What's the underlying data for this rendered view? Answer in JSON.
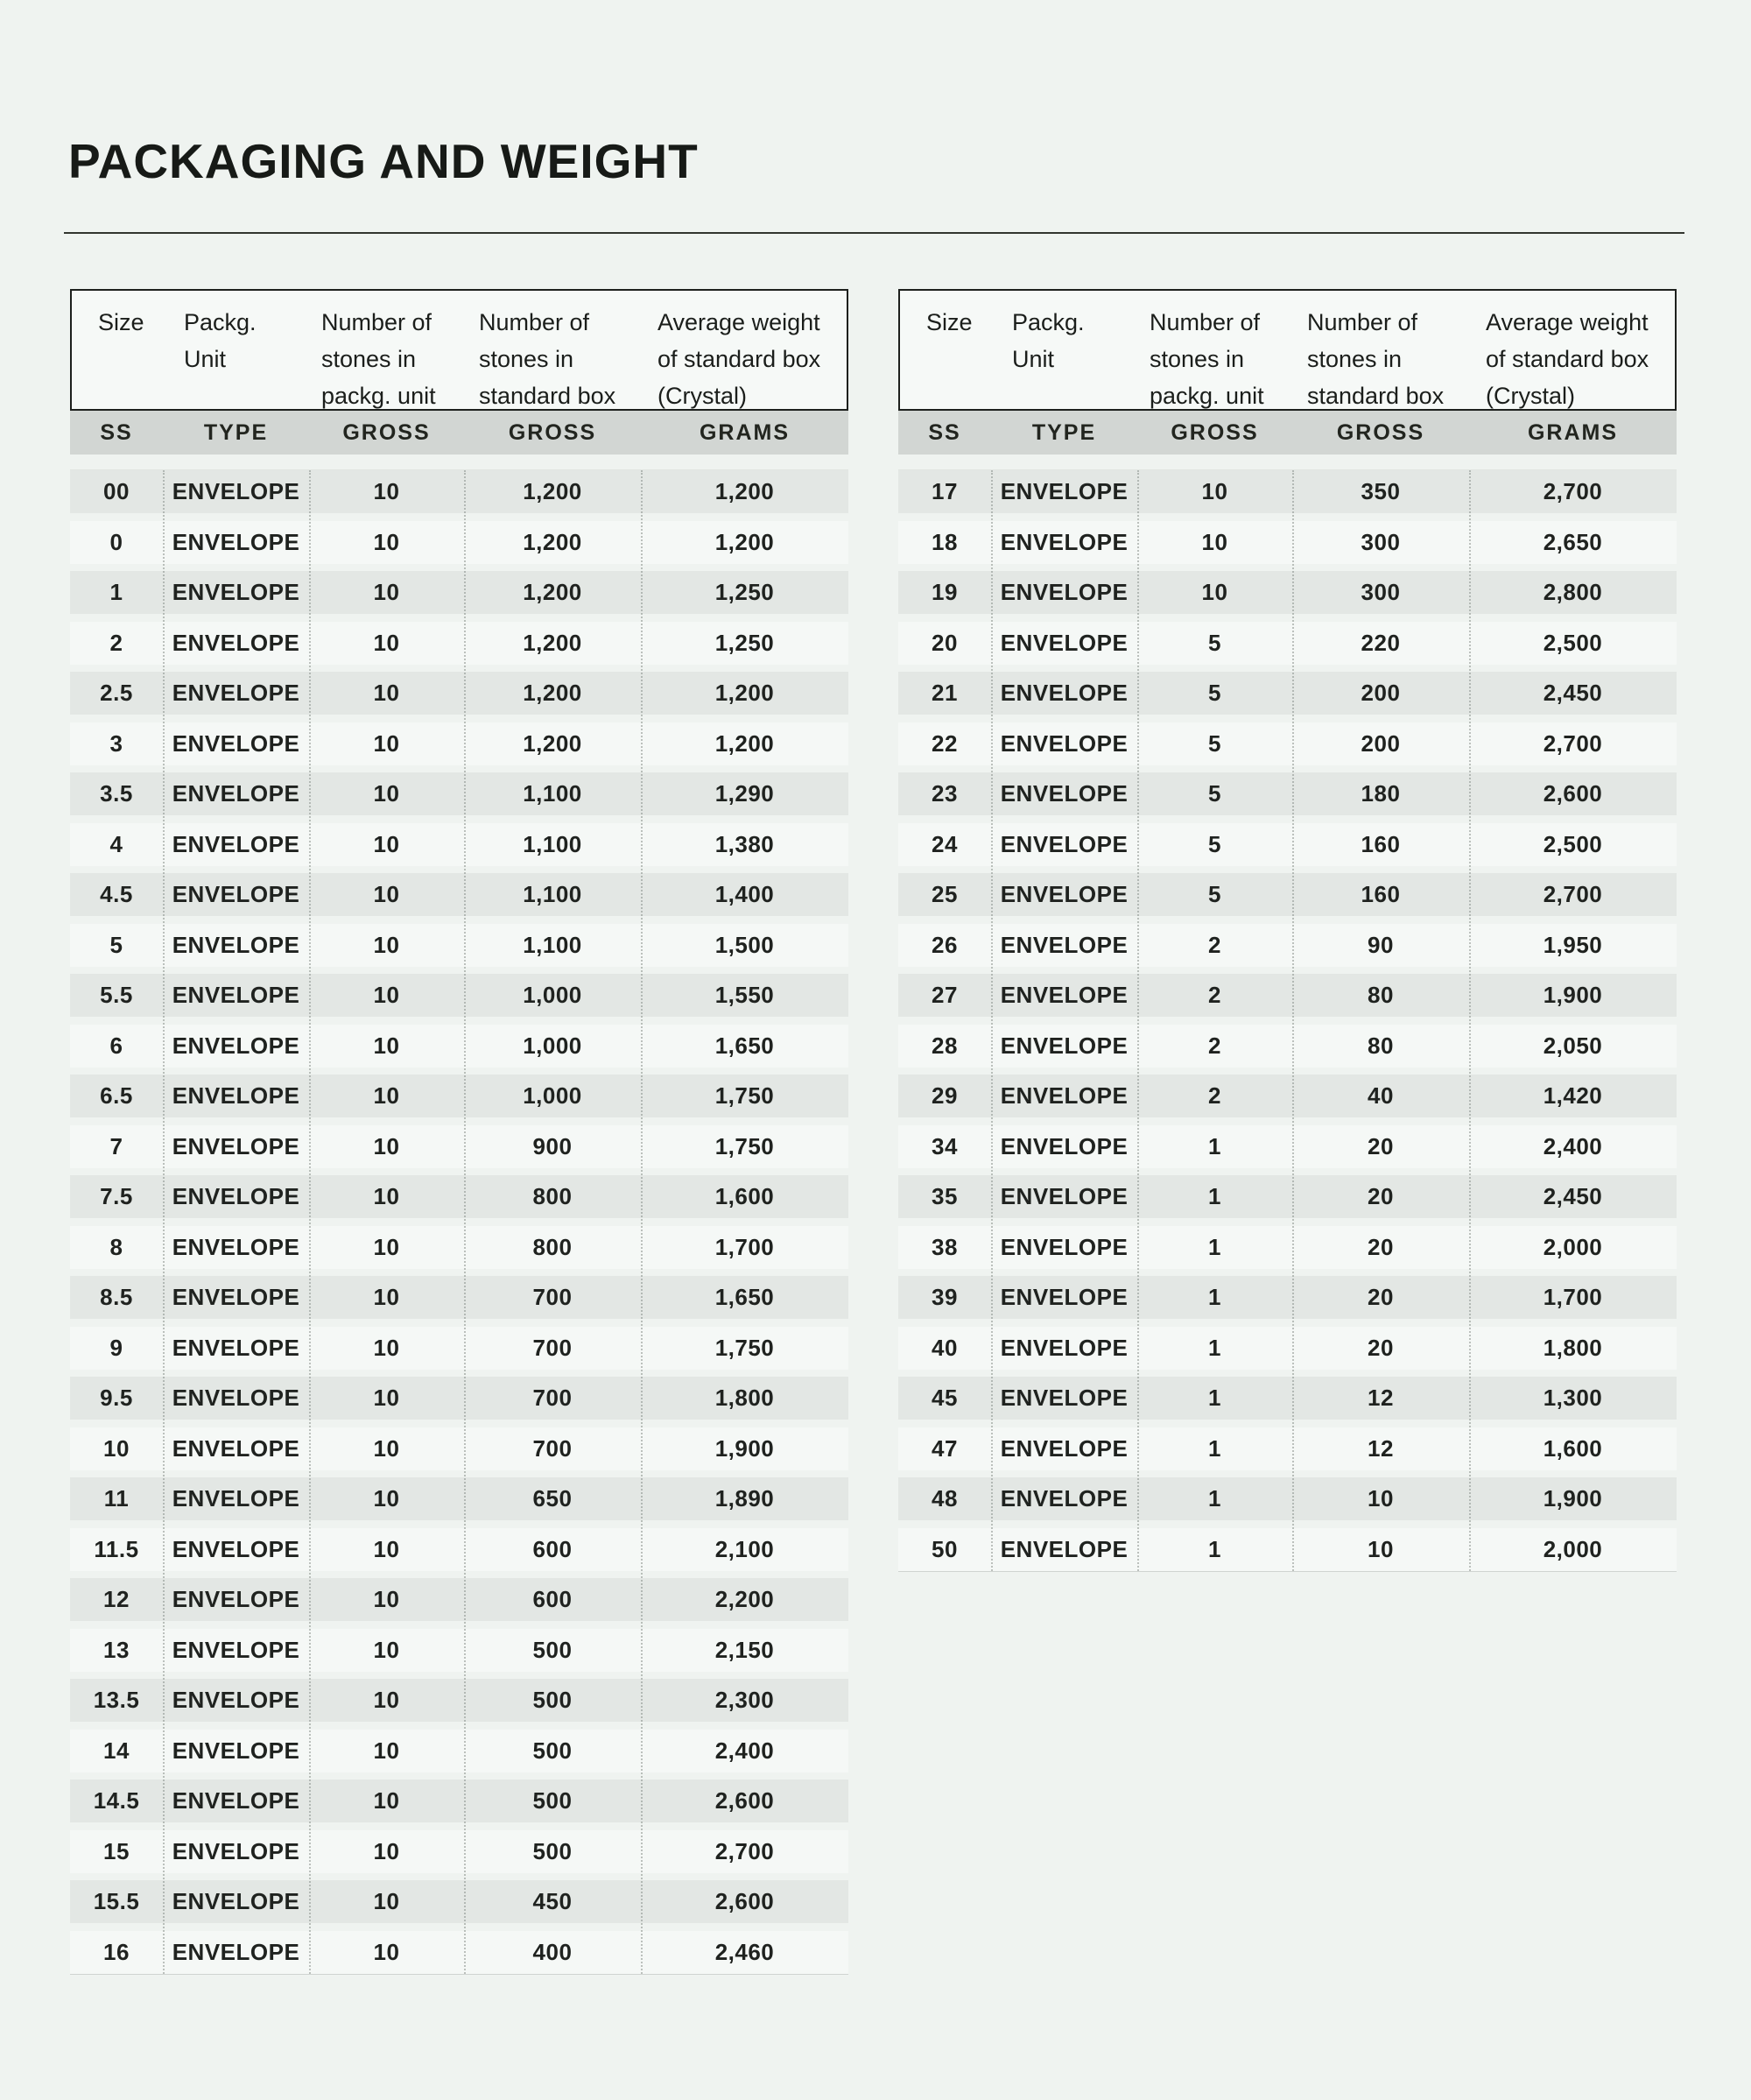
{
  "title": "PACKAGING AND WEIGHT",
  "columns": [
    {
      "lines": [
        "Size"
      ],
      "sub": "SS"
    },
    {
      "lines": [
        "Packg.",
        "Unit"
      ],
      "sub": "TYPE"
    },
    {
      "lines": [
        "Number of",
        "stones in",
        "packg. unit"
      ],
      "sub": "GROSS"
    },
    {
      "lines": [
        "Number of",
        "stones in",
        "standard box"
      ],
      "sub": "GROSS"
    },
    {
      "lines": [
        "Average weight",
        "of standard box",
        "(Crystal)"
      ],
      "sub": "GRAMS"
    }
  ],
  "tables": [
    {
      "rows": [
        [
          "00",
          "ENVELOPE",
          "10",
          "1,200",
          "1,200"
        ],
        [
          "0",
          "ENVELOPE",
          "10",
          "1,200",
          "1,200"
        ],
        [
          "1",
          "ENVELOPE",
          "10",
          "1,200",
          "1,250"
        ],
        [
          "2",
          "ENVELOPE",
          "10",
          "1,200",
          "1,250"
        ],
        [
          "2.5",
          "ENVELOPE",
          "10",
          "1,200",
          "1,200"
        ],
        [
          "3",
          "ENVELOPE",
          "10",
          "1,200",
          "1,200"
        ],
        [
          "3.5",
          "ENVELOPE",
          "10",
          "1,100",
          "1,290"
        ],
        [
          "4",
          "ENVELOPE",
          "10",
          "1,100",
          "1,380"
        ],
        [
          "4.5",
          "ENVELOPE",
          "10",
          "1,100",
          "1,400"
        ],
        [
          "5",
          "ENVELOPE",
          "10",
          "1,100",
          "1,500"
        ],
        [
          "5.5",
          "ENVELOPE",
          "10",
          "1,000",
          "1,550"
        ],
        [
          "6",
          "ENVELOPE",
          "10",
          "1,000",
          "1,650"
        ],
        [
          "6.5",
          "ENVELOPE",
          "10",
          "1,000",
          "1,750"
        ],
        [
          "7",
          "ENVELOPE",
          "10",
          "900",
          "1,750"
        ],
        [
          "7.5",
          "ENVELOPE",
          "10",
          "800",
          "1,600"
        ],
        [
          "8",
          "ENVELOPE",
          "10",
          "800",
          "1,700"
        ],
        [
          "8.5",
          "ENVELOPE",
          "10",
          "700",
          "1,650"
        ],
        [
          "9",
          "ENVELOPE",
          "10",
          "700",
          "1,750"
        ],
        [
          "9.5",
          "ENVELOPE",
          "10",
          "700",
          "1,800"
        ],
        [
          "10",
          "ENVELOPE",
          "10",
          "700",
          "1,900"
        ],
        [
          "11",
          "ENVELOPE",
          "10",
          "650",
          "1,890"
        ],
        [
          "11.5",
          "ENVELOPE",
          "10",
          "600",
          "2,100"
        ],
        [
          "12",
          "ENVELOPE",
          "10",
          "600",
          "2,200"
        ],
        [
          "13",
          "ENVELOPE",
          "10",
          "500",
          "2,150"
        ],
        [
          "13.5",
          "ENVELOPE",
          "10",
          "500",
          "2,300"
        ],
        [
          "14",
          "ENVELOPE",
          "10",
          "500",
          "2,400"
        ],
        [
          "14.5",
          "ENVELOPE",
          "10",
          "500",
          "2,600"
        ],
        [
          "15",
          "ENVELOPE",
          "10",
          "500",
          "2,700"
        ],
        [
          "15.5",
          "ENVELOPE",
          "10",
          "450",
          "2,600"
        ],
        [
          "16",
          "ENVELOPE",
          "10",
          "400",
          "2,460"
        ]
      ]
    },
    {
      "rows": [
        [
          "17",
          "ENVELOPE",
          "10",
          "350",
          "2,700"
        ],
        [
          "18",
          "ENVELOPE",
          "10",
          "300",
          "2,650"
        ],
        [
          "19",
          "ENVELOPE",
          "10",
          "300",
          "2,800"
        ],
        [
          "20",
          "ENVELOPE",
          "5",
          "220",
          "2,500"
        ],
        [
          "21",
          "ENVELOPE",
          "5",
          "200",
          "2,450"
        ],
        [
          "22",
          "ENVELOPE",
          "5",
          "200",
          "2,700"
        ],
        [
          "23",
          "ENVELOPE",
          "5",
          "180",
          "2,600"
        ],
        [
          "24",
          "ENVELOPE",
          "5",
          "160",
          "2,500"
        ],
        [
          "25",
          "ENVELOPE",
          "5",
          "160",
          "2,700"
        ],
        [
          "26",
          "ENVELOPE",
          "2",
          "90",
          "1,950"
        ],
        [
          "27",
          "ENVELOPE",
          "2",
          "80",
          "1,900"
        ],
        [
          "28",
          "ENVELOPE",
          "2",
          "80",
          "2,050"
        ],
        [
          "29",
          "ENVELOPE",
          "2",
          "40",
          "1,420"
        ],
        [
          "34",
          "ENVELOPE",
          "1",
          "20",
          "2,400"
        ],
        [
          "35",
          "ENVELOPE",
          "1",
          "20",
          "2,450"
        ],
        [
          "38",
          "ENVELOPE",
          "1",
          "20",
          "2,000"
        ],
        [
          "39",
          "ENVELOPE",
          "1",
          "20",
          "1,700"
        ],
        [
          "40",
          "ENVELOPE",
          "1",
          "20",
          "1,800"
        ],
        [
          "45",
          "ENVELOPE",
          "1",
          "12",
          "1,300"
        ],
        [
          "47",
          "ENVELOPE",
          "1",
          "12",
          "1,600"
        ],
        [
          "48",
          "ENVELOPE",
          "1",
          "10",
          "1,900"
        ],
        [
          "50",
          "ENVELOPE",
          "1",
          "10",
          "2,000"
        ]
      ]
    }
  ]
}
